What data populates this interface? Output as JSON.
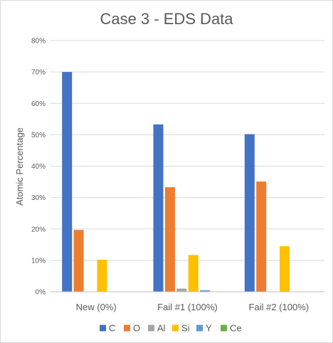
{
  "chart_data": {
    "type": "bar",
    "title": "Case 3 - EDS Data",
    "xlabel": "",
    "ylabel": "Atomic Percentage",
    "categories": [
      "New (0%)",
      "Fail #1 (100%)",
      "Fail #2 (100%)"
    ],
    "series": [
      {
        "name": "C",
        "color": "#4472C4",
        "values": [
          70.0,
          53.3,
          50.2
        ]
      },
      {
        "name": "O",
        "color": "#ED7D31",
        "values": [
          19.7,
          33.3,
          35.1
        ]
      },
      {
        "name": "Al",
        "color": "#A5A5A5",
        "values": [
          0,
          1.0,
          0
        ]
      },
      {
        "name": "Si",
        "color": "#FFC000",
        "values": [
          10.2,
          11.7,
          14.5
        ]
      },
      {
        "name": "Y",
        "color": "#5B9BD5",
        "values": [
          0,
          0.5,
          0
        ]
      },
      {
        "name": "Ce",
        "color": "#70AD47",
        "values": [
          0,
          0,
          0
        ]
      }
    ],
    "ylim": [
      0,
      80
    ],
    "yticks": [
      0,
      10,
      20,
      30,
      40,
      50,
      60,
      70,
      80
    ],
    "ytick_labels": [
      "0%",
      "10%",
      "20%",
      "30%",
      "40%",
      "50%",
      "60%",
      "70%",
      "80%"
    ],
    "grid": true,
    "legend_position": "bottom"
  }
}
